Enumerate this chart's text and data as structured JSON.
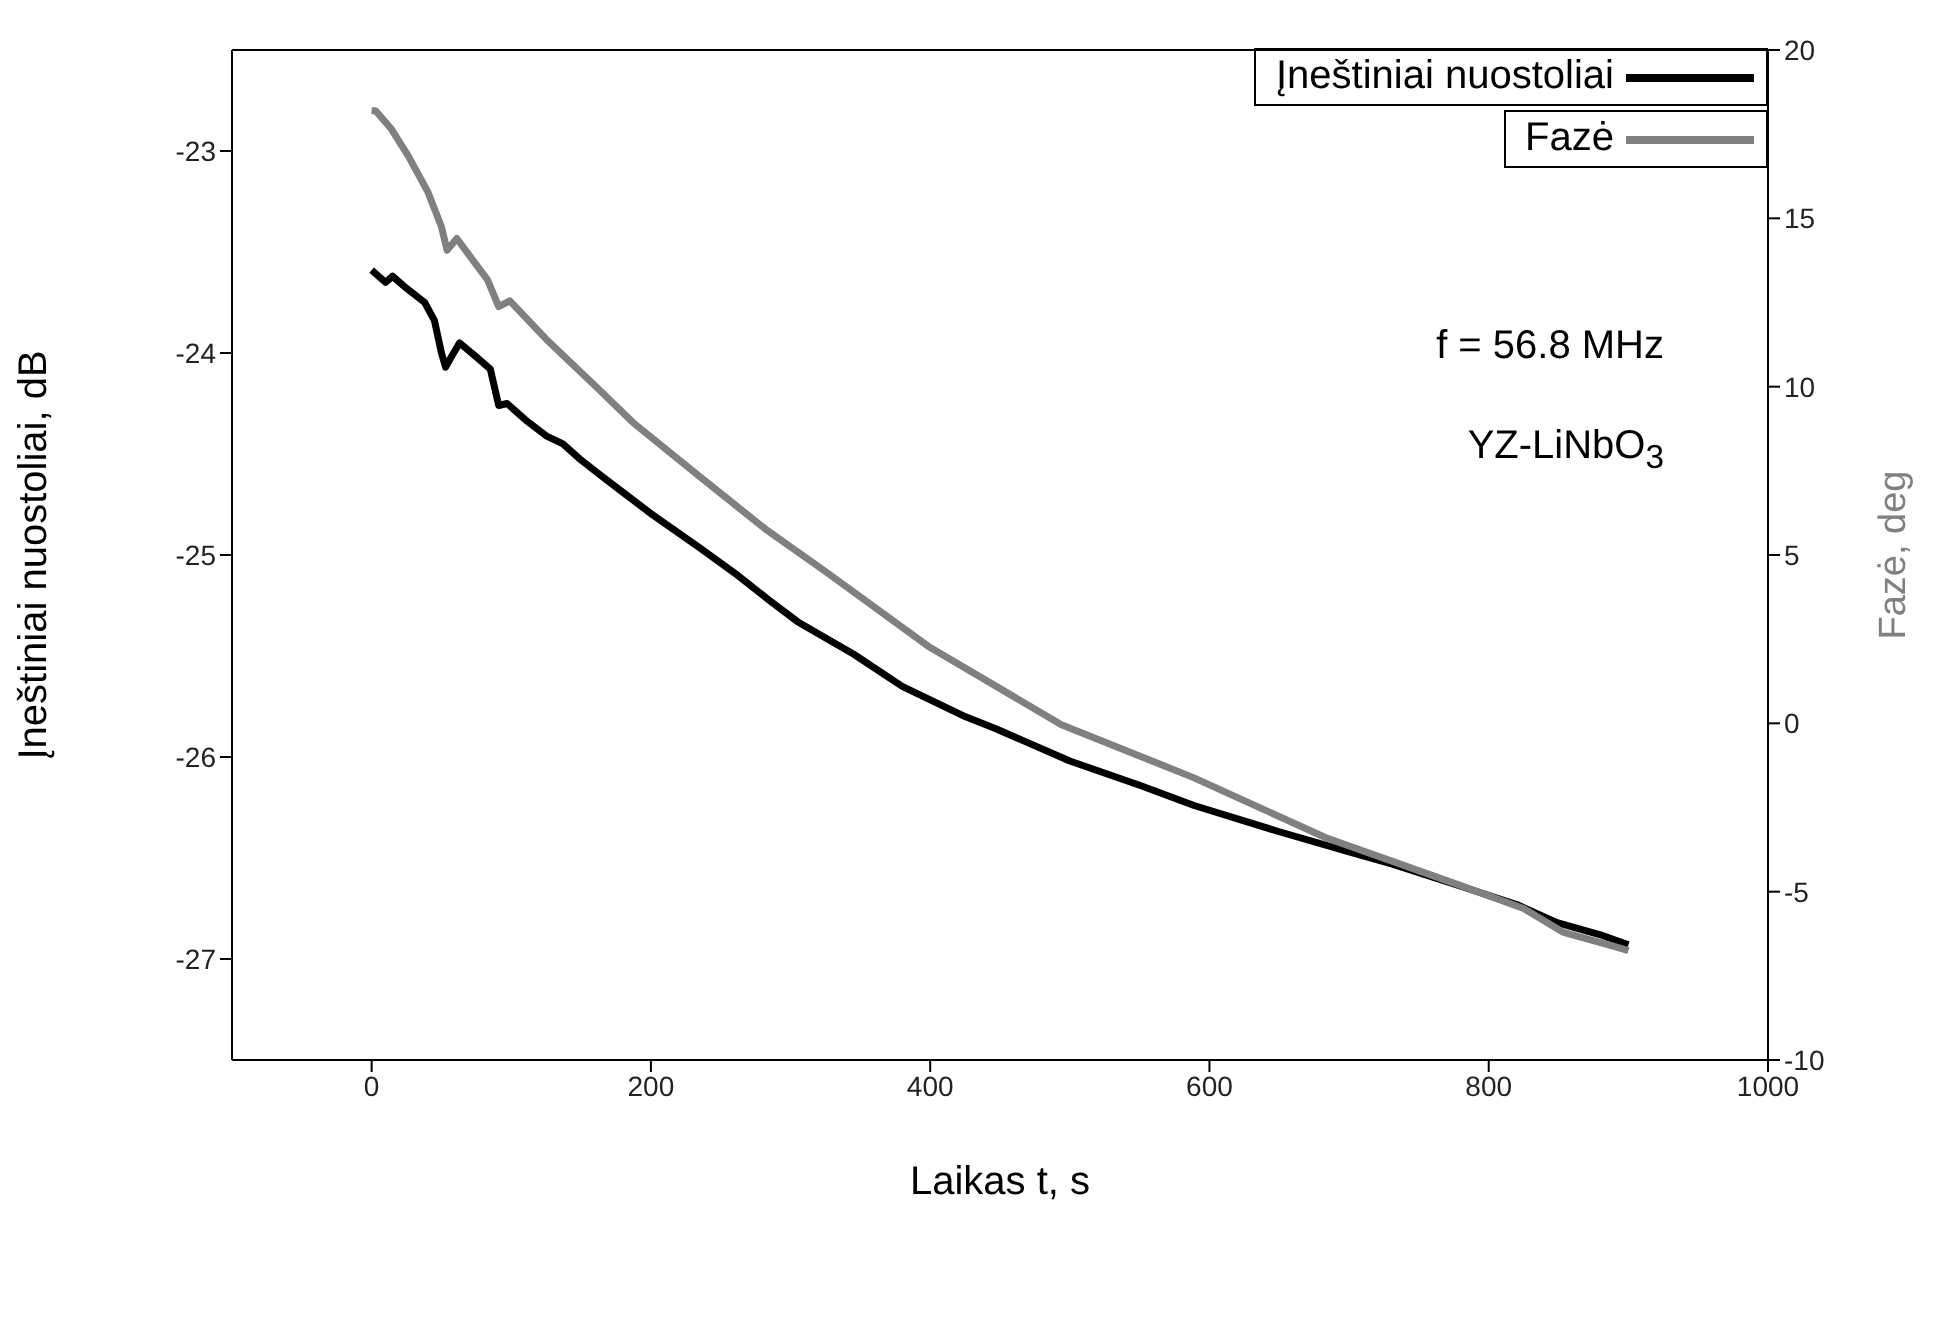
{
  "chart_data": {
    "type": "line",
    "xlabel": "Laikas t, s",
    "ylabel": "Įneštiniai nuostoliai, dB",
    "y2label": "Fazė, deg",
    "annotations": [
      "f = 56.8 MHz",
      "YZ-LiNbO$_{3}$"
    ],
    "xlim": [
      -100,
      1000
    ],
    "xticks": [
      0,
      200,
      400,
      600,
      800,
      1000
    ],
    "ylim": [
      -27.5,
      -22.5
    ],
    "yticks": [
      -27,
      -26,
      -25,
      -24,
      -23
    ],
    "y2lim": [
      -10,
      20
    ],
    "y2ticks": [
      -10,
      -5,
      0,
      5,
      10,
      15,
      20
    ],
    "grid": false,
    "legend": "top right",
    "marker": "none",
    "line_style": "solid",
    "series": [
      {
        "name": "Įneštiniai nuostoliai",
        "color": "#000000",
        "x": [
          0,
          10,
          15,
          25,
          38,
          45,
          50,
          53,
          57,
          63,
          75,
          85,
          91,
          97,
          110,
          125,
          137,
          150,
          163,
          180,
          201,
          234,
          262,
          284,
          305,
          345,
          380,
          425,
          447,
          500,
          550,
          589,
          650,
          700,
          731,
          780,
          820,
          849,
          880,
          900
        ],
        "values": [
          -23.59,
          -23.65,
          -23.62,
          -23.68,
          -23.75,
          -23.84,
          -24.0,
          -24.07,
          -24.02,
          -23.95,
          -24.02,
          -24.08,
          -24.26,
          -24.25,
          -24.33,
          -24.41,
          -24.45,
          -24.53,
          -24.6,
          -24.69,
          -24.8,
          -24.96,
          -25.1,
          -25.22,
          -25.33,
          -25.49,
          -25.65,
          -25.8,
          -25.86,
          -26.02,
          -26.14,
          -26.24,
          -26.37,
          -26.47,
          -26.53,
          -26.64,
          -26.73,
          -26.82,
          -26.88,
          -26.93
        ]
      },
      {
        "name": "Fazė",
        "color": "#808080",
        "axis": "y2",
        "x": [
          0,
          3,
          14,
          26,
          40,
          50,
          54,
          61,
          83,
          91,
          99,
          125,
          163,
          187,
          234,
          282,
          324,
          400,
          494,
          589,
          683,
          778,
          825,
          853,
          891,
          900
        ],
        "values": [
          18.2,
          18.19,
          17.66,
          16.87,
          15.81,
          14.75,
          14.05,
          14.4,
          13.17,
          12.38,
          12.55,
          11.41,
          9.91,
          8.94,
          7.36,
          5.77,
          4.54,
          2.25,
          -0.04,
          -1.62,
          -3.39,
          -4.79,
          -5.5,
          -6.2,
          -6.64,
          -6.75
        ]
      }
    ]
  }
}
